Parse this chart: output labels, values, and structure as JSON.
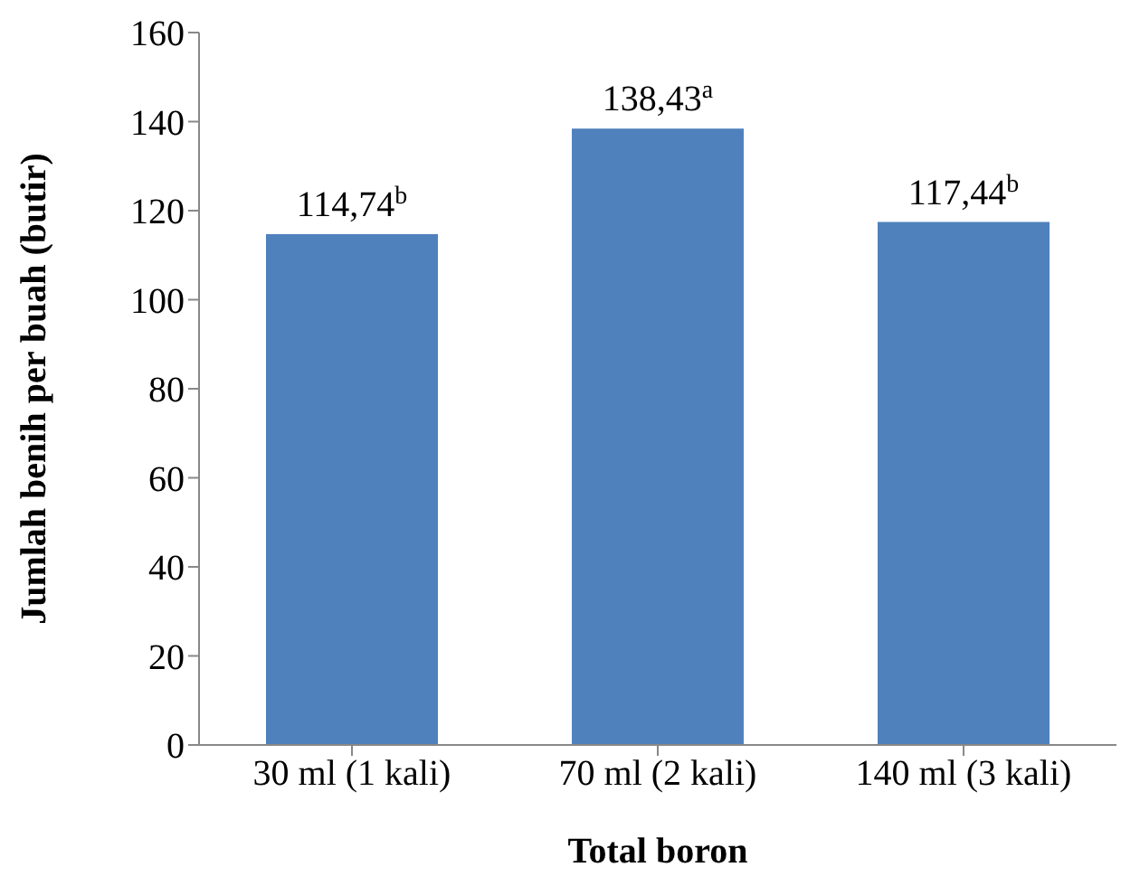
{
  "chart_data": {
    "type": "bar",
    "xlabel": "Total boron",
    "ylabel": "Jumlah benih per buah (butir)",
    "categories": [
      "30 ml (1 kali)",
      "70 ml (2 kali)",
      "140 ml (3 kali)"
    ],
    "values": [
      114.74,
      138.43,
      117.44
    ],
    "color": "#4f81bd",
    "value_labels": [
      "114,74$^{b}$",
      "138,43$^{a}$",
      "117,44$^{b}$"
    ],
    "ylim": [
      0,
      160
    ],
    "yticks": [
      0,
      20,
      40,
      60,
      80,
      100,
      120,
      140,
      160
    ],
    "grid": false,
    "legend": false
  }
}
